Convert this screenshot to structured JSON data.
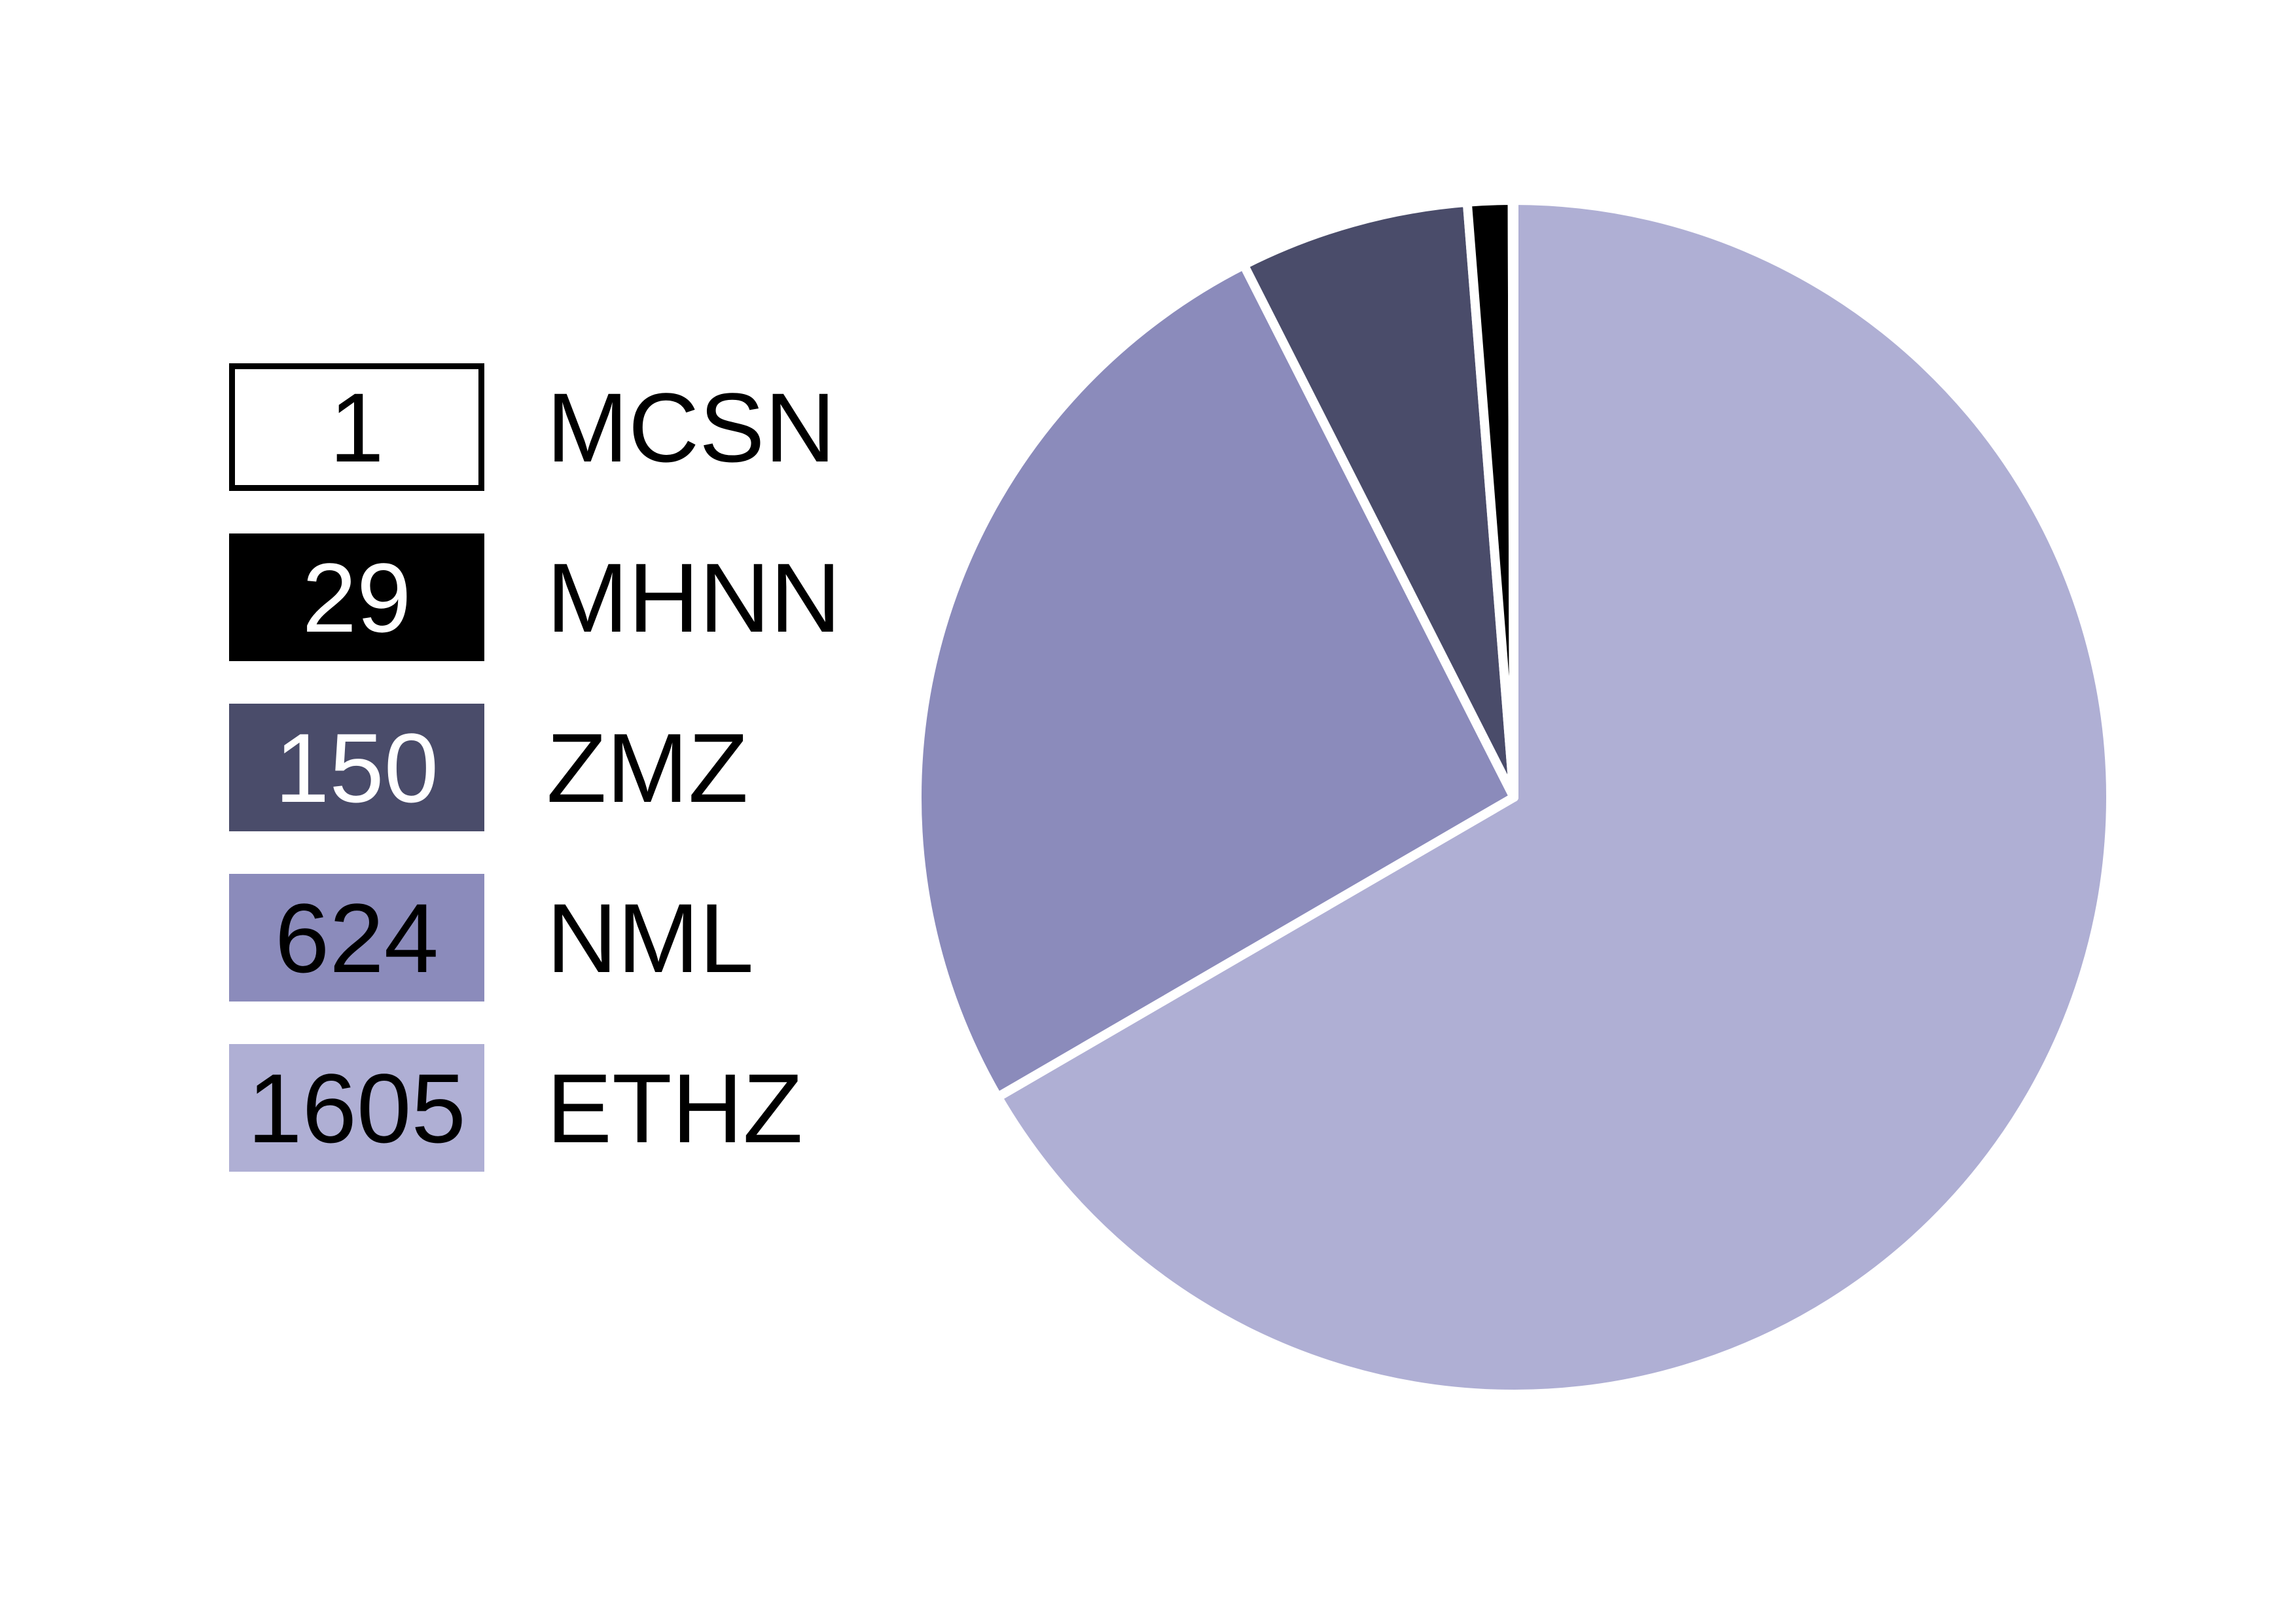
{
  "chart_data": {
    "type": "pie",
    "title": "",
    "legend_position": "left",
    "slices": [
      {
        "label": "MCSN",
        "value": 1,
        "color": "#ffffff",
        "text_color": "#000000",
        "outlined": true
      },
      {
        "label": "MHNN",
        "value": 29,
        "color": "#000000",
        "text_color": "#ffffff",
        "outlined": false
      },
      {
        "label": "ZMZ",
        "value": 150,
        "color": "#4a4c6a",
        "text_color": "#ffffff",
        "outlined": false
      },
      {
        "label": "NML",
        "value": 624,
        "color": "#8b8bbb",
        "text_color": "#000000",
        "outlined": false
      },
      {
        "label": "ETHZ",
        "value": 1605,
        "color": "#afafd4",
        "text_color": "#000000",
        "outlined": false
      }
    ]
  }
}
